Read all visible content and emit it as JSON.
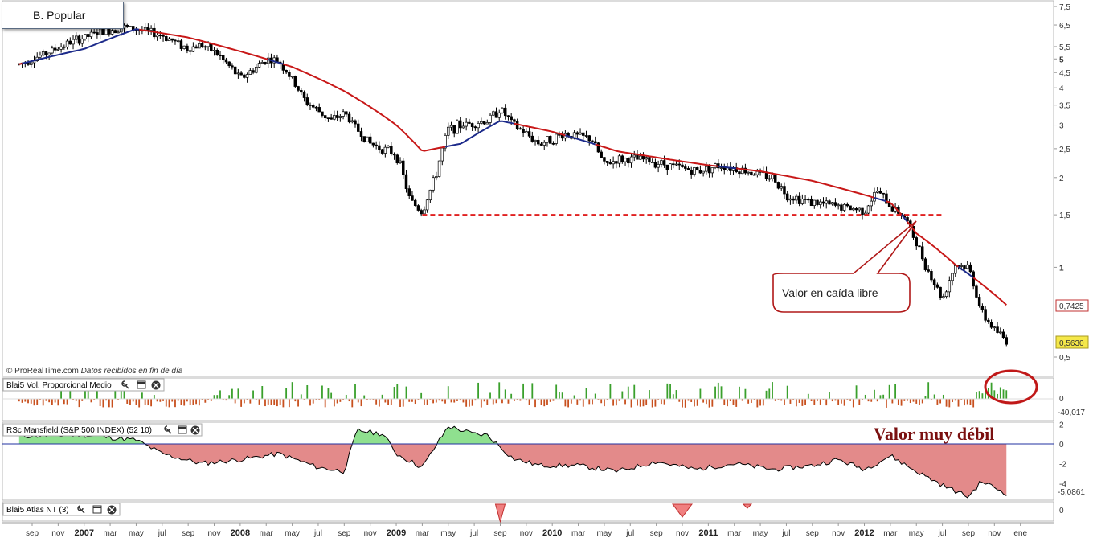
{
  "chart_data": [
    {
      "type": "candlestick",
      "title": "B. Popular",
      "y_scale": "log",
      "ylim": [
        0.45,
        7.6
      ],
      "y_ticks": [
        "7,5",
        "6,5",
        "5,5",
        "5",
        "4,5",
        "4",
        "3,5",
        "3",
        "2,5",
        "2",
        "1,5",
        "1",
        "0,5"
      ],
      "y_tick_values": [
        7.5,
        6.5,
        5.5,
        5,
        4.5,
        4,
        3.5,
        3,
        2.5,
        2,
        1.5,
        1,
        0.5
      ],
      "last_price_label": "0,5630",
      "moving_average_label": "0,7425",
      "price_series": {
        "name": "",
        "dates": [
          "2006-08",
          "2006-10",
          "2006-12",
          "2007-02",
          "2007-04",
          "2007-05",
          "2007-07",
          "2007-09",
          "2007-10",
          "2007-11",
          "2008-01",
          "2008-02",
          "2008-03",
          "2008-04",
          "2008-06",
          "2008-08",
          "2008-09",
          "2008-10",
          "2008-11",
          "2009-01",
          "2009-02",
          "2009-03",
          "2009-04",
          "2009-05",
          "2009-06",
          "2009-08",
          "2009-09",
          "2009-10",
          "2009-12",
          "2010-02",
          "2010-04",
          "2010-05",
          "2010-06",
          "2010-08",
          "2010-10",
          "2010-12",
          "2011-02",
          "2011-04",
          "2011-06",
          "2011-07",
          "2011-09",
          "2011-11",
          "2012-01",
          "2012-02",
          "2012-03",
          "2012-04",
          "2012-05",
          "2012-06",
          "2012-07",
          "2012-08",
          "2012-09",
          "2012-10",
          "2012-11",
          "2012-12"
        ],
        "values": [
          4.8,
          5.2,
          5.7,
          6.1,
          6.4,
          6.3,
          6.0,
          5.4,
          5.6,
          5.3,
          4.3,
          4.6,
          5.0,
          4.9,
          3.6,
          3.1,
          3.3,
          2.9,
          2.6,
          2.4,
          1.7,
          1.52,
          2.0,
          2.9,
          3.0,
          3.1,
          3.4,
          3.0,
          2.6,
          2.8,
          2.7,
          2.2,
          2.3,
          2.3,
          2.2,
          2.1,
          2.2,
          2.1,
          2.0,
          1.75,
          1.65,
          1.6,
          1.55,
          1.8,
          1.6,
          1.5,
          1.2,
          0.95,
          0.78,
          1.02,
          1.0,
          0.7,
          0.62,
          0.563
        ]
      },
      "moving_average": {
        "name": "",
        "dates": [
          "2006-08",
          "2007-01",
          "2007-05",
          "2007-09",
          "2008-01",
          "2008-05",
          "2008-09",
          "2009-01",
          "2009-03",
          "2009-06",
          "2009-09",
          "2010-01",
          "2010-06",
          "2010-10",
          "2011-01",
          "2011-05",
          "2011-09",
          "2012-01",
          "2012-03",
          "2012-05",
          "2012-08",
          "2012-10",
          "2012-12"
        ],
        "values": [
          4.8,
          5.4,
          6.3,
          5.9,
          5.3,
          4.7,
          3.9,
          3.0,
          2.45,
          2.6,
          3.1,
          2.85,
          2.45,
          2.3,
          2.2,
          2.1,
          1.95,
          1.75,
          1.65,
          1.3,
          1.02,
          0.88,
          0.7425
        ]
      },
      "support_level": 1.5,
      "support_dates": [
        "2009-03",
        "2012-07"
      ],
      "annotation": "Valor en caída libre",
      "credit_prefix": "© ProRealTime.com",
      "credit_suffix": "Datos recibidos en fin de día"
    },
    {
      "type": "bar",
      "title": "Blai5 Vol. Proporcional Medio",
      "y_ticks": [
        "0"
      ],
      "last_value_label": "-40,017",
      "colors": {
        "positive": "#3aa02c",
        "negative": "#c8501e"
      }
    },
    {
      "type": "area",
      "title": "RSc Mansfield (S&P 500 INDEX) (52 10)",
      "y_ticks": [
        "2",
        "0",
        "-2",
        "-4"
      ],
      "y_tick_values": [
        2,
        0,
        -2,
        -4
      ],
      "ylim": [
        -5.8,
        2.6
      ],
      "last_value_label": "-5,0861",
      "annotation": "Valor muy débil",
      "series": {
        "name": "",
        "dates": [
          "2006-08",
          "2007-01",
          "2007-05",
          "2007-07",
          "2007-10",
          "2008-01",
          "2008-04",
          "2008-07",
          "2008-09",
          "2008-10",
          "2008-12",
          "2009-01",
          "2009-03",
          "2009-05",
          "2009-07",
          "2009-08",
          "2009-10",
          "2009-12",
          "2010-03",
          "2010-06",
          "2010-09",
          "2010-12",
          "2011-03",
          "2011-06",
          "2011-09",
          "2011-11",
          "2012-01",
          "2012-03",
          "2012-05",
          "2012-07",
          "2012-09",
          "2012-10",
          "2012-12"
        ],
        "values": [
          0.8,
          0.9,
          0.4,
          -1.0,
          -2.0,
          -1.6,
          -1.0,
          -2.4,
          -2.8,
          1.4,
          1.0,
          -1.0,
          -2.4,
          1.8,
          1.0,
          0.9,
          -1.5,
          -2.2,
          -2.2,
          -2.8,
          -1.8,
          -2.6,
          -2.0,
          -2.6,
          -2.2,
          -1.6,
          -2.6,
          -1.2,
          -2.8,
          -4.2,
          -5.4,
          -3.8,
          -5.0861
        ]
      },
      "colors": {
        "positive": "#8fe08f",
        "negative": "#e38a8a"
      }
    },
    {
      "type": "area",
      "title": "Blai5 Atlas NT (3)",
      "y_ticks": [
        "0"
      ]
    }
  ],
  "x_axis": {
    "ticks": [
      {
        "label": "sep",
        "date": "2006-09"
      },
      {
        "label": "nov",
        "date": "2006-11"
      },
      {
        "label": "2007",
        "date": "2007-01",
        "year": true
      },
      {
        "label": "mar",
        "date": "2007-03"
      },
      {
        "label": "may",
        "date": "2007-05"
      },
      {
        "label": "jul",
        "date": "2007-07"
      },
      {
        "label": "sep",
        "date": "2007-09"
      },
      {
        "label": "nov",
        "date": "2007-11"
      },
      {
        "label": "2008",
        "date": "2008-01",
        "year": true
      },
      {
        "label": "mar",
        "date": "2008-03"
      },
      {
        "label": "may",
        "date": "2008-05"
      },
      {
        "label": "jul",
        "date": "2008-07"
      },
      {
        "label": "sep",
        "date": "2008-09"
      },
      {
        "label": "nov",
        "date": "2008-11"
      },
      {
        "label": "2009",
        "date": "2009-01",
        "year": true
      },
      {
        "label": "mar",
        "date": "2009-03"
      },
      {
        "label": "may",
        "date": "2009-05"
      },
      {
        "label": "jul",
        "date": "2009-07"
      },
      {
        "label": "sep",
        "date": "2009-09"
      },
      {
        "label": "nov",
        "date": "2009-11"
      },
      {
        "label": "2010",
        "date": "2010-01",
        "year": true
      },
      {
        "label": "mar",
        "date": "2010-03"
      },
      {
        "label": "may",
        "date": "2010-05"
      },
      {
        "label": "jul",
        "date": "2010-07"
      },
      {
        "label": "sep",
        "date": "2010-09"
      },
      {
        "label": "nov",
        "date": "2010-11"
      },
      {
        "label": "2011",
        "date": "2011-01",
        "year": true
      },
      {
        "label": "mar",
        "date": "2011-03"
      },
      {
        "label": "may",
        "date": "2011-05"
      },
      {
        "label": "jul",
        "date": "2011-07"
      },
      {
        "label": "sep",
        "date": "2011-09"
      },
      {
        "label": "nov",
        "date": "2011-11"
      },
      {
        "label": "2012",
        "date": "2012-01",
        "year": true
      },
      {
        "label": "mar",
        "date": "2012-03"
      },
      {
        "label": "may",
        "date": "2012-05"
      },
      {
        "label": "jul",
        "date": "2012-07"
      },
      {
        "label": "sep",
        "date": "2012-09"
      },
      {
        "label": "nov",
        "date": "2012-11"
      },
      {
        "label": "ene",
        "date": "2013-01"
      }
    ]
  }
}
